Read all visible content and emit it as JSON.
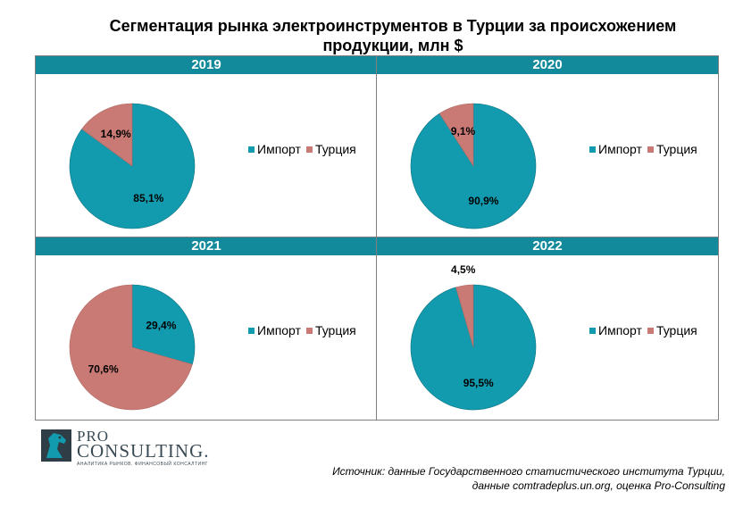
{
  "title_line1": "Сегментация рынка электроинструментов в Турции за происхожением",
  "title_line2": "продукции, млн $",
  "colors": {
    "import": "#129bae",
    "turkey": "#c97a74",
    "header": "#138a9b",
    "stroke": "#0f7483"
  },
  "chart_data": [
    {
      "type": "pie",
      "title": "2019",
      "labels": [
        "Импорт",
        "Турция"
      ],
      "values": [
        85.1,
        14.9
      ],
      "data_labels": [
        "85,1%",
        "14,9%"
      ],
      "legend_placement": "right"
    },
    {
      "type": "pie",
      "title": "2020",
      "labels": [
        "Импорт",
        "Турция"
      ],
      "values": [
        90.9,
        9.1
      ],
      "data_labels": [
        "90,9%",
        "9,1%"
      ],
      "legend_placement": "right"
    },
    {
      "type": "pie",
      "title": "2021",
      "labels": [
        "Импорт",
        "Турция"
      ],
      "values": [
        29.4,
        70.6
      ],
      "data_labels": [
        "29,4%",
        "70,6%"
      ],
      "legend_placement": "right"
    },
    {
      "type": "pie",
      "title": "2022",
      "labels": [
        "Импорт",
        "Турция"
      ],
      "values": [
        95.5,
        4.5
      ],
      "data_labels": [
        "95,5%",
        "4,5%"
      ],
      "legend_placement": "right"
    }
  ],
  "logo": {
    "line1": "PRO",
    "line2": "CONSULTING.",
    "tagline": "АНАЛИТИКА РЫНКОВ. ФИНАНСОВЫЙ КОНСАЛТИНГ"
  },
  "source": {
    "line1": "Источник: данные Государственного статистического института Турции,",
    "line2": "данные comtradeplus.un.org, оценка Pro-Consulting"
  }
}
